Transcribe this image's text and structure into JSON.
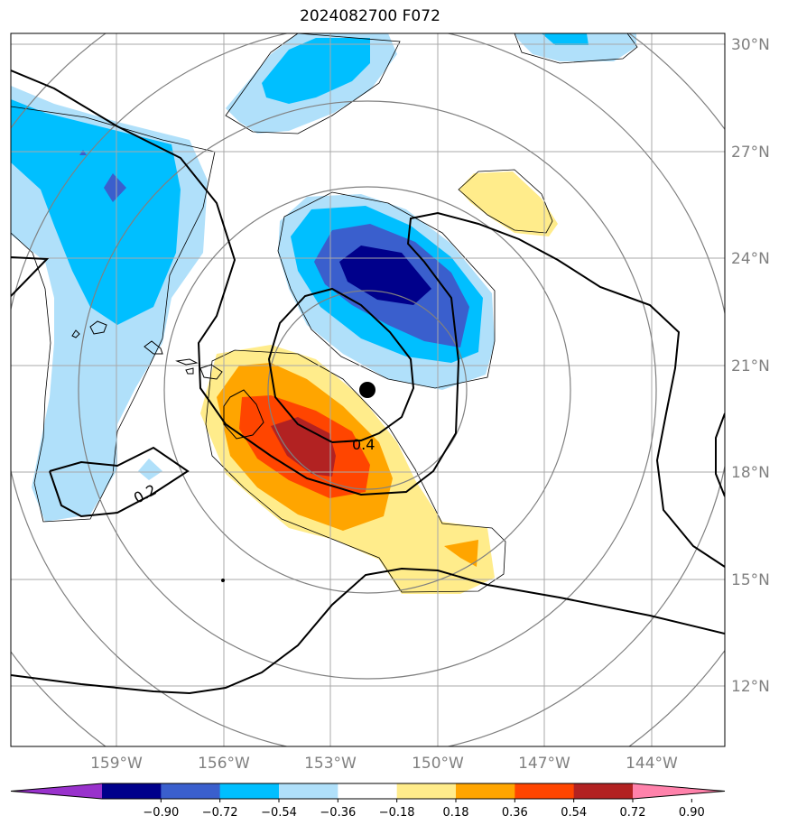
{
  "title": "2024082700 F072",
  "lat_labels": [
    "30°N",
    "27°N",
    "24°N",
    "21°N",
    "18°N",
    "15°N",
    "12°N"
  ],
  "lon_labels": [
    "159°W",
    "156°W",
    "153°W",
    "150°W",
    "147°W",
    "144°W"
  ],
  "contour_labels": [
    "0.4",
    "0.2"
  ],
  "colorbar": {
    "ticks": [
      "−0.90",
      "−0.72",
      "−0.54",
      "−0.36",
      "−0.18",
      "0.18",
      "0.36",
      "0.54",
      "0.72",
      "0.90"
    ],
    "colors": [
      "#9932cc",
      "#00008b",
      "#3a5fcd",
      "#00bfff",
      "#b0e0fa",
      "#ffffff",
      "#ffec8b",
      "#ffa500",
      "#ff4500",
      "#b22222",
      "#ff82ab"
    ]
  }
}
